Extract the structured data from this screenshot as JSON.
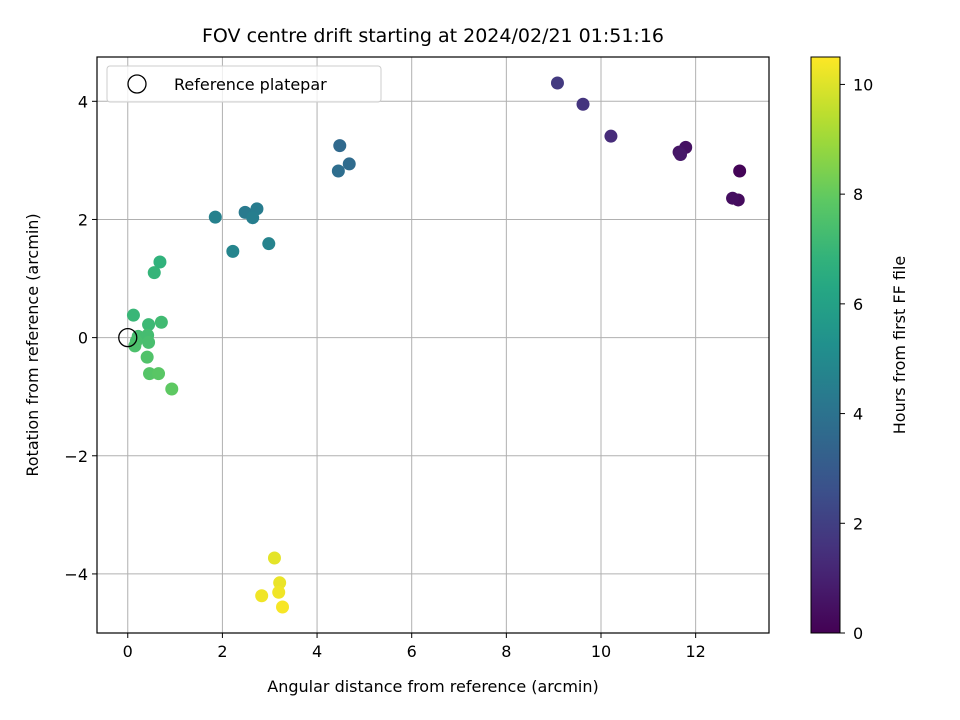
{
  "chart_data": {
    "type": "scatter",
    "title": "FOV centre drift starting at 2024/02/21 01:51:16",
    "xlabel": "Angular distance from reference (arcmin)",
    "ylabel": "Rotation from reference (arcmin)",
    "xlim": [
      -0.65,
      13.55
    ],
    "ylim": [
      -5.0,
      4.75
    ],
    "xticks": [
      0,
      2,
      4,
      6,
      8,
      10,
      12
    ],
    "yticks": [
      -4,
      -2,
      0,
      2,
      4
    ],
    "grid": true,
    "legend": {
      "placement": "top-left",
      "entries": [
        "Reference platepar"
      ]
    },
    "reference_point": {
      "x": 0,
      "y": 0
    },
    "colorbar": {
      "label": "Hours from first FF file",
      "range": [
        0,
        10.5
      ],
      "ticks": [
        0,
        2,
        4,
        6,
        8,
        10
      ],
      "colormap": "viridis"
    },
    "points": [
      {
        "x": 12.93,
        "y": 2.82,
        "c": 0.1
      },
      {
        "x": 12.9,
        "y": 2.33,
        "c": 0.3
      },
      {
        "x": 12.78,
        "y": 2.36,
        "c": 0.4
      },
      {
        "x": 11.79,
        "y": 3.22,
        "c": 0.5
      },
      {
        "x": 11.65,
        "y": 3.14,
        "c": 0.6
      },
      {
        "x": 11.68,
        "y": 3.1,
        "c": 0.7
      },
      {
        "x": 10.21,
        "y": 3.41,
        "c": 1.3
      },
      {
        "x": 9.62,
        "y": 3.95,
        "c": 1.6
      },
      {
        "x": 9.08,
        "y": 4.31,
        "c": 1.8
      },
      {
        "x": 4.48,
        "y": 3.25,
        "c": 3.6
      },
      {
        "x": 4.68,
        "y": 2.94,
        "c": 3.7
      },
      {
        "x": 4.45,
        "y": 2.82,
        "c": 3.8
      },
      {
        "x": 2.48,
        "y": 2.12,
        "c": 4.3
      },
      {
        "x": 2.73,
        "y": 2.18,
        "c": 4.4
      },
      {
        "x": 2.64,
        "y": 2.03,
        "c": 4.5
      },
      {
        "x": 1.85,
        "y": 2.04,
        "c": 4.6
      },
      {
        "x": 2.98,
        "y": 1.59,
        "c": 4.7
      },
      {
        "x": 2.22,
        "y": 1.46,
        "c": 4.8
      },
      {
        "x": 0.68,
        "y": 1.28,
        "c": 6.8
      },
      {
        "x": 0.56,
        "y": 1.1,
        "c": 6.9
      },
      {
        "x": 0.12,
        "y": 0.38,
        "c": 7.0
      },
      {
        "x": 0.44,
        "y": 0.22,
        "c": 7.1
      },
      {
        "x": 0.71,
        "y": 0.26,
        "c": 7.2
      },
      {
        "x": 0.22,
        "y": 0.02,
        "c": 7.3
      },
      {
        "x": 0.42,
        "y": 0.04,
        "c": 7.3
      },
      {
        "x": 0.18,
        "y": -0.06,
        "c": 7.4
      },
      {
        "x": 0.44,
        "y": -0.08,
        "c": 7.4
      },
      {
        "x": 0.15,
        "y": -0.14,
        "c": 7.5
      },
      {
        "x": 0.41,
        "y": -0.33,
        "c": 7.6
      },
      {
        "x": 0.46,
        "y": -0.61,
        "c": 7.7
      },
      {
        "x": 0.65,
        "y": -0.61,
        "c": 7.8
      },
      {
        "x": 0.93,
        "y": -0.87,
        "c": 7.9
      },
      {
        "x": 3.1,
        "y": -3.73,
        "c": 10.1
      },
      {
        "x": 3.21,
        "y": -4.15,
        "c": 10.2
      },
      {
        "x": 3.19,
        "y": -4.31,
        "c": 10.3
      },
      {
        "x": 2.83,
        "y": -4.37,
        "c": 10.3
      },
      {
        "x": 3.27,
        "y": -4.56,
        "c": 10.4
      }
    ]
  }
}
